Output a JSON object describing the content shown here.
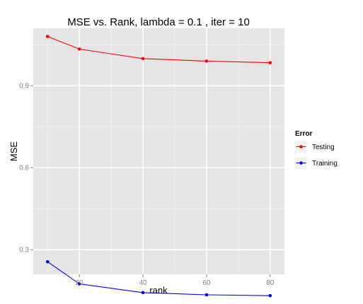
{
  "chart_data": {
    "type": "line",
    "title": "MSE vs. Rank, lambda =  0.1 , iter =  10",
    "xlabel": "rank",
    "ylabel": "MSE",
    "x": [
      10,
      20,
      40,
      60,
      80
    ],
    "xlim": [
      5.5,
      84.5
    ],
    "ylim": [
      0.21,
      1.11
    ],
    "x_ticks": [
      20,
      40,
      60,
      80
    ],
    "x_tick_labels": [
      "20",
      "40",
      "60",
      "80"
    ],
    "y_ticks": [
      0.3,
      0.6,
      0.9
    ],
    "y_tick_labels": [
      "0.3",
      "0.6",
      "0.9"
    ],
    "grid": true,
    "background": "#e5e5e5",
    "legend": {
      "title": "Error",
      "position": "right"
    },
    "series": [
      {
        "name": "Testing",
        "color": "#ff0000",
        "values": [
          1.08,
          1.034,
          0.999,
          0.99,
          0.984
        ]
      },
      {
        "name": "Training",
        "color": "#0000ff",
        "values": [
          0.256,
          0.175,
          0.143,
          0.135,
          0.132
        ]
      }
    ]
  }
}
